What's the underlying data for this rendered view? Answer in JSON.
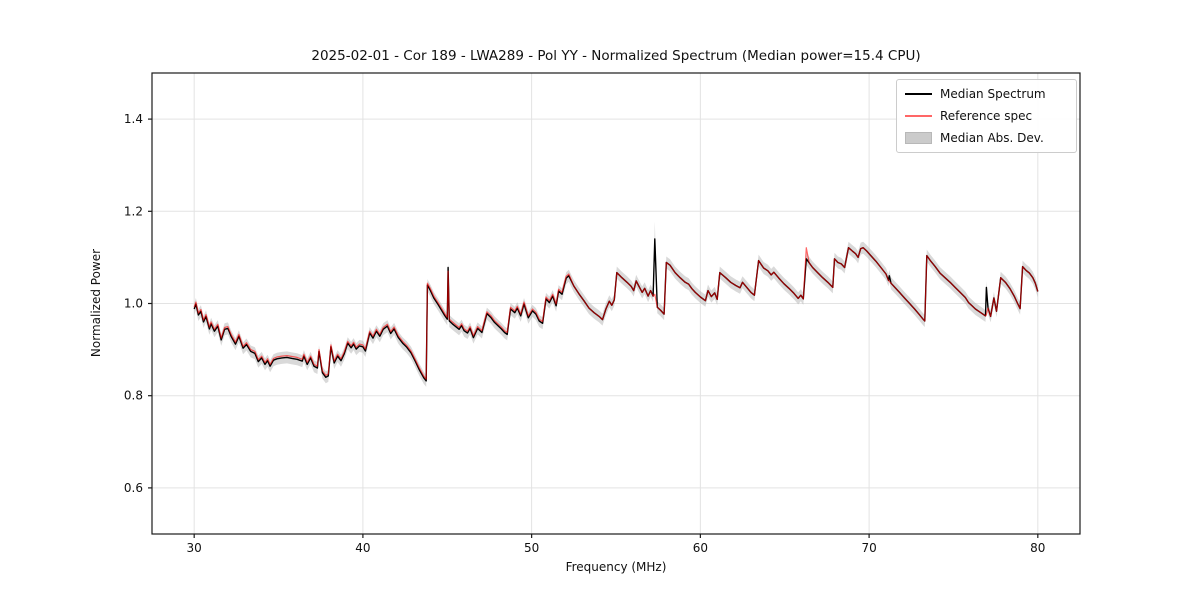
{
  "chart_data": {
    "type": "line",
    "title": "2025-02-01 - Cor 189 - LWA289 - Pol YY - Normalized Spectrum (Median power=15.4 CPU)",
    "xlabel": "Frequency (MHz)",
    "ylabel": "Normalized Power",
    "xlim": [
      27.5,
      82.5
    ],
    "ylim": [
      0.5,
      1.5
    ],
    "xticks": [
      30,
      40,
      50,
      60,
      70,
      80
    ],
    "xtick_labels": [
      "30",
      "40",
      "50",
      "60",
      "70",
      "80"
    ],
    "yticks": [
      0.6,
      0.8,
      1.0,
      1.2,
      1.4
    ],
    "ytick_labels": [
      "0.6",
      "0.8",
      "1.0",
      "1.2",
      "1.4"
    ],
    "grid": true,
    "grid_color": "#e3e3e3",
    "spine_color": "#1a1a1a",
    "legend": {
      "position": "upper right",
      "entries": [
        {
          "label": "Median Spectrum",
          "type": "line",
          "color": "#000000",
          "opacity": 1
        },
        {
          "label": "Reference spec",
          "type": "line",
          "color": "#ff0000",
          "opacity": 0.6
        },
        {
          "label": "Median Abs. Dev.",
          "type": "patch",
          "color": "#aaaaaa",
          "opacity": 0.45
        }
      ]
    },
    "series": [
      {
        "name": "Median Spectrum",
        "color": "#000000",
        "opacity": 1,
        "line_width": 1.4,
        "points": [
          [
            30.0,
            0.988
          ],
          [
            30.1,
            0.999
          ],
          [
            30.25,
            0.975
          ],
          [
            30.4,
            0.983
          ],
          [
            30.55,
            0.96
          ],
          [
            30.7,
            0.972
          ],
          [
            30.9,
            0.945
          ],
          [
            31.0,
            0.956
          ],
          [
            31.2,
            0.94
          ],
          [
            31.4,
            0.951
          ],
          [
            31.6,
            0.921
          ],
          [
            31.8,
            0.944
          ],
          [
            32.0,
            0.946
          ],
          [
            32.2,
            0.928
          ],
          [
            32.45,
            0.912
          ],
          [
            32.65,
            0.929
          ],
          [
            32.9,
            0.903
          ],
          [
            33.1,
            0.911
          ],
          [
            33.35,
            0.896
          ],
          [
            33.6,
            0.892
          ],
          [
            33.8,
            0.874
          ],
          [
            34.0,
            0.882
          ],
          [
            34.2,
            0.868
          ],
          [
            34.35,
            0.876
          ],
          [
            34.5,
            0.864
          ],
          [
            34.7,
            0.877
          ],
          [
            34.9,
            0.88
          ],
          [
            35.2,
            0.882
          ],
          [
            35.5,
            0.883
          ],
          [
            35.8,
            0.881
          ],
          [
            36.1,
            0.879
          ],
          [
            36.4,
            0.875
          ],
          [
            36.5,
            0.886
          ],
          [
            36.7,
            0.868
          ],
          [
            36.9,
            0.882
          ],
          [
            37.1,
            0.864
          ],
          [
            37.3,
            0.86
          ],
          [
            37.4,
            0.896
          ],
          [
            37.6,
            0.85
          ],
          [
            37.8,
            0.84
          ],
          [
            37.95,
            0.843
          ],
          [
            38.1,
            0.906
          ],
          [
            38.3,
            0.871
          ],
          [
            38.5,
            0.886
          ],
          [
            38.7,
            0.876
          ],
          [
            38.9,
            0.891
          ],
          [
            39.1,
            0.914
          ],
          [
            39.3,
            0.904
          ],
          [
            39.45,
            0.912
          ],
          [
            39.6,
            0.901
          ],
          [
            39.8,
            0.908
          ],
          [
            40.0,
            0.906
          ],
          [
            40.15,
            0.897
          ],
          [
            40.4,
            0.936
          ],
          [
            40.6,
            0.925
          ],
          [
            40.8,
            0.94
          ],
          [
            41.0,
            0.929
          ],
          [
            41.2,
            0.944
          ],
          [
            41.45,
            0.951
          ],
          [
            41.65,
            0.935
          ],
          [
            41.85,
            0.945
          ],
          [
            42.1,
            0.926
          ],
          [
            42.35,
            0.914
          ],
          [
            42.6,
            0.905
          ],
          [
            42.85,
            0.893
          ],
          [
            43.1,
            0.875
          ],
          [
            43.35,
            0.856
          ],
          [
            43.6,
            0.839
          ],
          [
            43.75,
            0.832
          ],
          [
            43.82,
            1.04
          ],
          [
            44.0,
            1.028
          ],
          [
            44.2,
            1.012
          ],
          [
            44.45,
            0.998
          ],
          [
            44.65,
            0.986
          ],
          [
            44.85,
            0.974
          ],
          [
            45.0,
            0.966
          ],
          [
            45.05,
            1.078
          ],
          [
            45.12,
            0.962
          ],
          [
            45.3,
            0.956
          ],
          [
            45.5,
            0.95
          ],
          [
            45.7,
            0.944
          ],
          [
            45.85,
            0.952
          ],
          [
            46.0,
            0.941
          ],
          [
            46.2,
            0.936
          ],
          [
            46.35,
            0.946
          ],
          [
            46.55,
            0.926
          ],
          [
            46.8,
            0.946
          ],
          [
            47.05,
            0.937
          ],
          [
            47.35,
            0.978
          ],
          [
            47.6,
            0.969
          ],
          [
            47.8,
            0.959
          ],
          [
            48.0,
            0.952
          ],
          [
            48.2,
            0.945
          ],
          [
            48.4,
            0.937
          ],
          [
            48.55,
            0.933
          ],
          [
            48.75,
            0.988
          ],
          [
            49.0,
            0.98
          ],
          [
            49.15,
            0.99
          ],
          [
            49.35,
            0.973
          ],
          [
            49.55,
            0.999
          ],
          [
            49.8,
            0.969
          ],
          [
            50.05,
            0.984
          ],
          [
            50.25,
            0.977
          ],
          [
            50.45,
            0.962
          ],
          [
            50.65,
            0.957
          ],
          [
            50.85,
            1.01
          ],
          [
            51.05,
            1.002
          ],
          [
            51.25,
            1.016
          ],
          [
            51.45,
            0.995
          ],
          [
            51.6,
            1.027
          ],
          [
            51.8,
            1.02
          ],
          [
            52.05,
            1.055
          ],
          [
            52.2,
            1.06
          ],
          [
            52.5,
            1.038
          ],
          [
            52.8,
            1.021
          ],
          [
            53.1,
            1.006
          ],
          [
            53.4,
            0.99
          ],
          [
            53.7,
            0.98
          ],
          [
            54.0,
            0.972
          ],
          [
            54.2,
            0.965
          ],
          [
            54.4,
            0.988
          ],
          [
            54.6,
            1.005
          ],
          [
            54.75,
            0.996
          ],
          [
            54.9,
            1.008
          ],
          [
            55.05,
            1.067
          ],
          [
            55.35,
            1.056
          ],
          [
            55.65,
            1.046
          ],
          [
            55.9,
            1.037
          ],
          [
            56.05,
            1.028
          ],
          [
            56.2,
            1.049
          ],
          [
            56.35,
            1.038
          ],
          [
            56.55,
            1.024
          ],
          [
            56.7,
            1.033
          ],
          [
            56.9,
            1.016
          ],
          [
            57.05,
            1.028
          ],
          [
            57.2,
            1.016
          ],
          [
            57.3,
            1.14
          ],
          [
            57.45,
            0.992
          ],
          [
            57.65,
            0.985
          ],
          [
            57.85,
            0.977
          ],
          [
            57.98,
            1.089
          ],
          [
            58.2,
            1.083
          ],
          [
            58.5,
            1.067
          ],
          [
            58.8,
            1.056
          ],
          [
            59.1,
            1.046
          ],
          [
            59.3,
            1.042
          ],
          [
            59.5,
            1.032
          ],
          [
            59.7,
            1.024
          ],
          [
            60.0,
            1.014
          ],
          [
            60.3,
            1.006
          ],
          [
            60.45,
            1.028
          ],
          [
            60.65,
            1.015
          ],
          [
            60.85,
            1.023
          ],
          [
            61.0,
            1.009
          ],
          [
            61.15,
            1.067
          ],
          [
            61.5,
            1.056
          ],
          [
            61.8,
            1.046
          ],
          [
            62.1,
            1.039
          ],
          [
            62.35,
            1.034
          ],
          [
            62.5,
            1.046
          ],
          [
            62.75,
            1.035
          ],
          [
            63.0,
            1.024
          ],
          [
            63.2,
            1.018
          ],
          [
            63.45,
            1.093
          ],
          [
            63.75,
            1.077
          ],
          [
            64.0,
            1.071
          ],
          [
            64.2,
            1.062
          ],
          [
            64.35,
            1.068
          ],
          [
            64.65,
            1.055
          ],
          [
            64.95,
            1.043
          ],
          [
            65.25,
            1.033
          ],
          [
            65.55,
            1.022
          ],
          [
            65.8,
            1.011
          ],
          [
            65.95,
            1.018
          ],
          [
            66.1,
            1.01
          ],
          [
            66.28,
            1.097
          ],
          [
            66.45,
            1.088
          ],
          [
            66.65,
            1.078
          ],
          [
            66.95,
            1.067
          ],
          [
            67.25,
            1.056
          ],
          [
            67.55,
            1.046
          ],
          [
            67.85,
            1.035
          ],
          [
            67.95,
            1.097
          ],
          [
            68.15,
            1.089
          ],
          [
            68.35,
            1.086
          ],
          [
            68.55,
            1.078
          ],
          [
            68.78,
            1.121
          ],
          [
            69.0,
            1.114
          ],
          [
            69.2,
            1.108
          ],
          [
            69.35,
            1.1
          ],
          [
            69.5,
            1.119
          ],
          [
            69.65,
            1.121
          ],
          [
            69.85,
            1.114
          ],
          [
            70.1,
            1.104
          ],
          [
            70.4,
            1.092
          ],
          [
            70.7,
            1.078
          ],
          [
            71.0,
            1.064
          ],
          [
            71.15,
            1.05
          ],
          [
            71.2,
            1.06
          ],
          [
            71.3,
            1.044
          ],
          [
            71.5,
            1.036
          ],
          [
            71.8,
            1.024
          ],
          [
            72.1,
            1.012
          ],
          [
            72.4,
            1.0
          ],
          [
            72.7,
            0.988
          ],
          [
            72.95,
            0.977
          ],
          [
            73.2,
            0.966
          ],
          [
            73.3,
            0.962
          ],
          [
            73.42,
            1.104
          ],
          [
            73.65,
            1.092
          ],
          [
            73.9,
            1.081
          ],
          [
            74.2,
            1.066
          ],
          [
            74.5,
            1.056
          ],
          [
            74.8,
            1.046
          ],
          [
            75.1,
            1.035
          ],
          [
            75.4,
            1.024
          ],
          [
            75.7,
            1.013
          ],
          [
            75.9,
            1.002
          ],
          [
            76.1,
            0.995
          ],
          [
            76.3,
            0.988
          ],
          [
            76.5,
            0.983
          ],
          [
            76.7,
            0.978
          ],
          [
            76.9,
            0.973
          ],
          [
            76.95,
            1.035
          ],
          [
            77.05,
            0.99
          ],
          [
            77.2,
            0.972
          ],
          [
            77.4,
            1.012
          ],
          [
            77.55,
            0.983
          ],
          [
            77.8,
            1.056
          ],
          [
            78.1,
            1.045
          ],
          [
            78.35,
            1.032
          ],
          [
            78.6,
            1.016
          ],
          [
            78.8,
            1.0
          ],
          [
            78.95,
            0.989
          ],
          [
            79.1,
            1.08
          ],
          [
            79.3,
            1.072
          ],
          [
            79.5,
            1.066
          ],
          [
            79.7,
            1.056
          ],
          [
            79.85,
            1.044
          ],
          [
            80.0,
            1.026
          ]
        ]
      },
      {
        "name": "Reference spec",
        "color": "#ff0000",
        "opacity": 0.6,
        "line_width": 1.2,
        "derived_from": "Median Spectrum",
        "offset_ranges": [
          {
            "from": 30.0,
            "to": 52.3,
            "delta": 0.004
          }
        ],
        "overrides": [
          [
            45.05,
            1.07
          ],
          [
            57.3,
            1.02
          ],
          [
            66.28,
            1.121
          ],
          [
            71.2,
            1.048
          ],
          [
            76.95,
            0.976
          ]
        ]
      },
      {
        "name": "Median Abs. Dev.",
        "type": "band",
        "around": "Median Spectrum",
        "half_width": 0.013,
        "upper_overrides": [
          [
            57.3,
            1.178
          ]
        ],
        "color": "#aaaaaa",
        "opacity": 0.45
      }
    ]
  }
}
